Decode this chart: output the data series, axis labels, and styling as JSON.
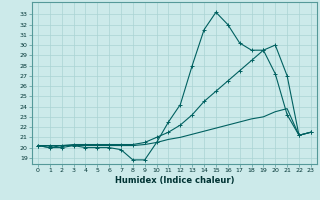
{
  "xlabel": "Humidex (Indice chaleur)",
  "background_color": "#cceaea",
  "grid_color": "#aad4d4",
  "line_color": "#006060",
  "x_values": [
    0,
    1,
    2,
    3,
    4,
    5,
    6,
    7,
    8,
    9,
    10,
    11,
    12,
    13,
    14,
    15,
    16,
    17,
    18,
    19,
    20,
    21,
    22,
    23
  ],
  "line1_y": [
    20.2,
    20.0,
    20.0,
    20.2,
    20.0,
    20.0,
    20.0,
    19.8,
    18.8,
    18.8,
    20.5,
    22.5,
    24.2,
    28.0,
    31.5,
    33.2,
    32.0,
    30.2,
    29.5,
    29.5,
    27.2,
    23.2,
    21.2,
    21.5
  ],
  "line2_y": [
    20.2,
    20.2,
    20.2,
    20.3,
    20.3,
    20.3,
    20.3,
    20.3,
    20.3,
    20.5,
    21.0,
    21.5,
    22.2,
    23.2,
    24.5,
    25.5,
    26.5,
    27.5,
    28.5,
    29.5,
    30.0,
    27.0,
    21.2,
    21.5
  ],
  "line3_y": [
    20.2,
    20.0,
    20.2,
    20.2,
    20.2,
    20.2,
    20.2,
    20.2,
    20.2,
    20.3,
    20.5,
    20.8,
    21.0,
    21.3,
    21.6,
    21.9,
    22.2,
    22.5,
    22.8,
    23.0,
    23.5,
    23.8,
    21.2,
    21.5
  ],
  "xlim": [
    -0.5,
    23.5
  ],
  "ylim": [
    18.4,
    34.2
  ],
  "yticks": [
    19,
    20,
    21,
    22,
    23,
    24,
    25,
    26,
    27,
    28,
    29,
    30,
    31,
    32,
    33
  ],
  "xticks": [
    0,
    1,
    2,
    3,
    4,
    5,
    6,
    7,
    8,
    9,
    10,
    11,
    12,
    13,
    14,
    15,
    16,
    17,
    18,
    19,
    20,
    21,
    22,
    23
  ],
  "xlabel_fontsize": 6,
  "tick_fontsize": 4.5
}
